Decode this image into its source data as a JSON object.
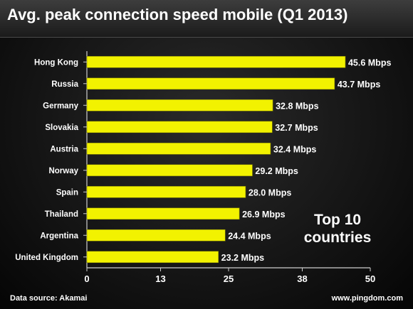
{
  "colors": {
    "bar": "#f2f200",
    "background": "#141414",
    "text": "#ffffff",
    "axis": "#cfcfcf"
  },
  "note": {
    "line1": "Top 10",
    "line2": "countries"
  },
  "footer": {
    "source": "Data source: Akamai",
    "site": "www.pingdom.com"
  },
  "chart_data": {
    "type": "bar",
    "orientation": "horizontal",
    "title": "Avg. peak connection speed mobile (Q1 2013)",
    "categories": [
      "Hong Kong",
      "Russia",
      "Germany",
      "Slovakia",
      "Austria",
      "Norway",
      "Spain",
      "Thailand",
      "Argentina",
      "United Kingdom"
    ],
    "values": [
      45.6,
      43.7,
      32.8,
      32.7,
      32.4,
      29.2,
      28.0,
      26.9,
      24.4,
      23.2
    ],
    "data_labels": [
      "45.6 Mbps",
      "43.7 Mbps",
      "32.8 Mbps",
      "32.7 Mbps",
      "32.4 Mbps",
      "29.2 Mbps",
      "28.0 Mbps",
      "26.9 Mbps",
      "24.4 Mbps",
      "23.2 Mbps"
    ],
    "xlim": [
      0,
      50
    ],
    "xticks": [
      0,
      13,
      25,
      38,
      50
    ],
    "xlabel": "",
    "ylabel": "",
    "grid": false,
    "legend": "none"
  }
}
